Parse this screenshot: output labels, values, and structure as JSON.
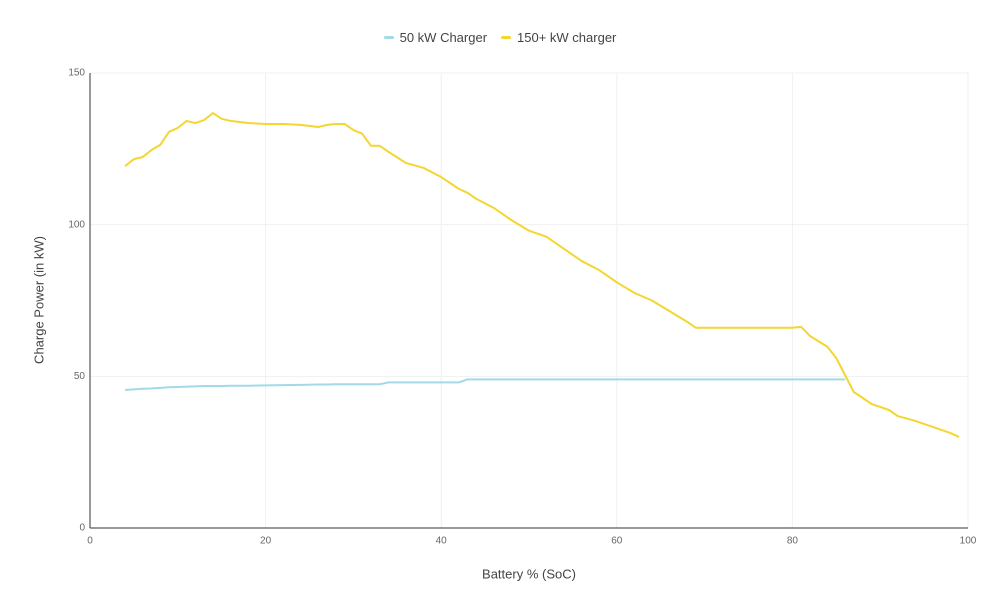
{
  "chart_data": {
    "type": "line",
    "x_label": "Battery % (SoC)",
    "y_label": "Charge Power (in kW)",
    "x": [
      4,
      5,
      6,
      7,
      8,
      9,
      10,
      11,
      12,
      13,
      14,
      15,
      16,
      18,
      20,
      22,
      24,
      26,
      27,
      28,
      29,
      30,
      31,
      32,
      33,
      34,
      36,
      38,
      40,
      42,
      43,
      44,
      46,
      48,
      50,
      52,
      54,
      56,
      58,
      60,
      62,
      64,
      66,
      68,
      69,
      70,
      72,
      74,
      76,
      78,
      80,
      81,
      82,
      84,
      85,
      86,
      87,
      88,
      89,
      90,
      91,
      92,
      94,
      96,
      98,
      99
    ],
    "series": [
      {
        "name": "50 kW Charger",
        "color": "#a3d9e8",
        "values": [
          45.5,
          45.7,
          45.9,
          46,
          46.2,
          46.4,
          46.5,
          46.6,
          46.7,
          46.8,
          46.8,
          46.8,
          46.9,
          46.9,
          47,
          47.1,
          47.2,
          47.3,
          47.3,
          47.4,
          47.4,
          47.4,
          47.4,
          47.4,
          47.4,
          48,
          48,
          48,
          48,
          48,
          49,
          49,
          49,
          49,
          49,
          49,
          49,
          49,
          49,
          49,
          49,
          49,
          49,
          49,
          49,
          49,
          49,
          49,
          49,
          49,
          49,
          49,
          49,
          49,
          49,
          49,
          null,
          null,
          null,
          null,
          null,
          null,
          null,
          null,
          null,
          null
        ]
      },
      {
        "name": "150+ kW charger",
        "color": "#f3d630",
        "values": [
          119.3,
          121.6,
          122.3,
          124.6,
          126.3,
          130.6,
          131.9,
          134.2,
          133.5,
          134.5,
          136.8,
          134.9,
          134.2,
          133.5,
          133.2,
          133.2,
          132.9,
          132.2,
          132.9,
          133.2,
          133.2,
          131.2,
          130,
          126,
          126,
          124,
          120.3,
          118.7,
          115.7,
          111.8,
          110.5,
          108.5,
          105.5,
          101.5,
          98,
          96,
          92,
          88,
          85,
          81,
          77.5,
          75,
          71.5,
          68,
          66,
          66,
          66,
          66,
          66,
          66,
          66,
          66.3,
          63.3,
          59.7,
          56,
          50.4,
          44.8,
          42.9,
          40.9,
          39.9,
          38.9,
          36.9,
          35.3,
          33.3,
          31.3,
          30
        ]
      }
    ],
    "xlim": [
      0,
      100
    ],
    "xticks": [
      0,
      20,
      40,
      60,
      80,
      100
    ],
    "ylim": [
      0,
      150
    ],
    "yticks": [
      0,
      50,
      100,
      150
    ],
    "grid": true,
    "legend": "top"
  }
}
